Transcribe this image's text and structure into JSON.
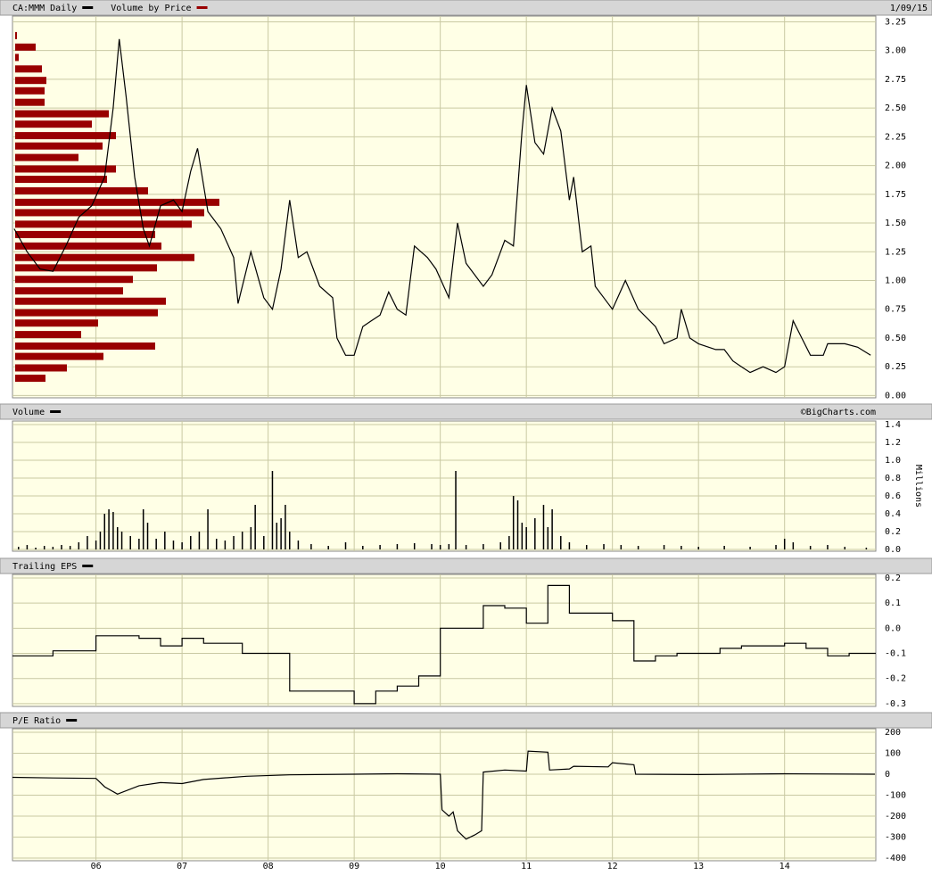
{
  "chart_data": [
    {
      "type": "line",
      "date": "1/09/15",
      "series": [
        {
          "name": "CA:MMM Daily",
          "color": "#000000",
          "x": [
            2005.05,
            2005.2,
            2005.35,
            2005.5,
            2005.65,
            2005.8,
            2005.95,
            2006.1,
            2006.2,
            2006.27,
            2006.35,
            2006.45,
            2006.55,
            2006.62,
            2006.75,
            2006.9,
            2007.0,
            2007.1,
            2007.18,
            2007.3,
            2007.45,
            2007.6,
            2007.65,
            2007.8,
            2007.95,
            2008.05,
            2008.15,
            2008.25,
            2008.35,
            2008.45,
            2008.6,
            2008.75,
            2008.8,
            2008.9,
            2009.0,
            2009.1,
            2009.2,
            2009.3,
            2009.4,
            2009.5,
            2009.6,
            2009.7,
            2009.85,
            2009.95,
            2010.1,
            2010.2,
            2010.3,
            2010.5,
            2010.6,
            2010.75,
            2010.85,
            2010.95,
            2011.0,
            2011.1,
            2011.2,
            2011.3,
            2011.4,
            2011.5,
            2011.55,
            2011.65,
            2011.75,
            2011.8,
            2011.9,
            2012.0,
            2012.15,
            2012.3,
            2012.5,
            2012.6,
            2012.75,
            2012.8,
            2012.9,
            2013.0,
            2013.2,
            2013.3,
            2013.4,
            2013.5,
            2013.6,
            2013.75,
            2013.9,
            2014.0,
            2014.1,
            2014.2,
            2014.3,
            2014.45,
            2014.5,
            2014.7,
            2014.85,
            2015.0
          ],
          "values": [
            1.45,
            1.25,
            1.1,
            1.08,
            1.3,
            1.55,
            1.65,
            1.9,
            2.5,
            3.1,
            2.6,
            1.9,
            1.45,
            1.3,
            1.65,
            1.7,
            1.6,
            1.95,
            2.15,
            1.6,
            1.45,
            1.2,
            0.8,
            1.25,
            0.85,
            0.75,
            1.1,
            1.7,
            1.2,
            1.25,
            0.95,
            0.85,
            0.5,
            0.35,
            0.35,
            0.6,
            0.65,
            0.7,
            0.9,
            0.75,
            0.7,
            1.3,
            1.2,
            1.1,
            0.85,
            1.5,
            1.15,
            0.95,
            1.05,
            1.35,
            1.3,
            2.3,
            2.7,
            2.2,
            2.1,
            2.5,
            2.3,
            1.7,
            1.9,
            1.25,
            1.3,
            0.95,
            0.85,
            0.75,
            1.0,
            0.75,
            0.6,
            0.45,
            0.5,
            0.75,
            0.5,
            0.45,
            0.4,
            0.4,
            0.3,
            0.25,
            0.2,
            0.25,
            0.2,
            0.25,
            0.65,
            0.5,
            0.35,
            0.35,
            0.45,
            0.45,
            0.42,
            0.35
          ]
        }
      ],
      "volume_by_price": {
        "name": "Volume by Price",
        "color": "#990000",
        "prices": [
          3.13,
          3.03,
          2.94,
          2.84,
          2.74,
          2.65,
          2.55,
          2.45,
          2.36,
          2.26,
          2.17,
          2.07,
          1.97,
          1.88,
          1.78,
          1.68,
          1.59,
          1.49,
          1.4,
          1.3,
          1.2,
          1.11,
          1.01,
          0.91,
          0.82,
          0.72,
          0.63,
          0.53,
          0.43,
          0.34,
          0.24,
          0.15
        ],
        "values": [
          2,
          23,
          4,
          30,
          35,
          33,
          33,
          105,
          86,
          113,
          98,
          71,
          113,
          103,
          149,
          229,
          212,
          198,
          157,
          164,
          201,
          159,
          132,
          121,
          169,
          160,
          93,
          74,
          157,
          99,
          58,
          34
        ]
      },
      "xlim": [
        2005.03,
        2015.06
      ],
      "ylim": [
        -0.02,
        3.3
      ],
      "yticks": [
        {
          "value": 0,
          "label": "0.00"
        },
        0.25,
        {
          "value": 0.5,
          "label": "0.50"
        },
        0.75,
        {
          "value": 1,
          "label": "1.00"
        },
        1.25,
        {
          "value": 1.5,
          "label": "1.50"
        },
        1.75,
        {
          "value": 2,
          "label": "2.00"
        },
        2.25,
        {
          "value": 2.5,
          "label": "2.50"
        },
        2.75,
        {
          "value": 3,
          "label": "3.00"
        },
        3.25
      ],
      "grid": true
    },
    {
      "type": "bar",
      "credit": "©BigCharts.com",
      "y_label": "Millions",
      "series": [
        {
          "name": "Volume",
          "color": "#000000",
          "x": [
            2005.1,
            2005.2,
            2005.3,
            2005.4,
            2005.5,
            2005.6,
            2005.7,
            2005.8,
            2005.9,
            2006.0,
            2006.05,
            2006.1,
            2006.15,
            2006.2,
            2006.25,
            2006.3,
            2006.4,
            2006.5,
            2006.55,
            2006.6,
            2006.7,
            2006.8,
            2006.9,
            2007.0,
            2007.1,
            2007.2,
            2007.3,
            2007.4,
            2007.5,
            2007.6,
            2007.7,
            2007.8,
            2007.85,
            2007.95,
            2008.05,
            2008.1,
            2008.15,
            2008.2,
            2008.25,
            2008.35,
            2008.5,
            2008.7,
            2008.9,
            2009.1,
            2009.3,
            2009.5,
            2009.7,
            2009.9,
            2010.0,
            2010.1,
            2010.18,
            2010.3,
            2010.5,
            2010.7,
            2010.8,
            2010.85,
            2010.9,
            2010.95,
            2011.0,
            2011.1,
            2011.2,
            2011.25,
            2011.3,
            2011.4,
            2011.5,
            2011.7,
            2011.9,
            2012.1,
            2012.3,
            2012.6,
            2012.8,
            2013.0,
            2013.3,
            2013.6,
            2013.9,
            2014.0,
            2014.1,
            2014.3,
            2014.5,
            2014.7,
            2014.95
          ],
          "values": [
            0.03,
            0.05,
            0.02,
            0.04,
            0.03,
            0.05,
            0.04,
            0.08,
            0.15,
            0.1,
            0.2,
            0.4,
            0.45,
            0.42,
            0.25,
            0.2,
            0.15,
            0.12,
            0.45,
            0.3,
            0.12,
            0.2,
            0.1,
            0.08,
            0.15,
            0.2,
            0.45,
            0.12,
            0.1,
            0.15,
            0.2,
            0.25,
            0.5,
            0.15,
            0.88,
            0.3,
            0.35,
            0.5,
            0.2,
            0.1,
            0.06,
            0.04,
            0.08,
            0.04,
            0.05,
            0.06,
            0.07,
            0.06,
            0.05,
            0.06,
            0.88,
            0.05,
            0.06,
            0.08,
            0.15,
            0.6,
            0.55,
            0.3,
            0.25,
            0.35,
            0.5,
            0.25,
            0.45,
            0.15,
            0.08,
            0.05,
            0.06,
            0.05,
            0.04,
            0.05,
            0.04,
            0.03,
            0.04,
            0.03,
            0.05,
            0.12,
            0.08,
            0.04,
            0.05,
            0.03,
            0.02
          ]
        }
      ],
      "xlim": [
        2005.03,
        2015.06
      ],
      "ylim": [
        -0.02,
        1.44
      ],
      "yticks": [
        {
          "value": 0,
          "label": "0.0"
        },
        0.2,
        0.4,
        0.6,
        0.8,
        {
          "value": 1,
          "label": "1.0"
        },
        1.2,
        1.4
      ],
      "grid": true
    },
    {
      "type": "step",
      "series": [
        {
          "name": "Trailing EPS",
          "color": "#000000",
          "x": [
            2005.03,
            2005.5,
            2006.0,
            2006.5,
            2006.75,
            2007.0,
            2007.25,
            2007.7,
            2008.25,
            2009.0,
            2009.25,
            2009.5,
            2009.75,
            2010.0,
            2010.5,
            2010.75,
            2011.0,
            2011.25,
            2011.5,
            2012.0,
            2012.25,
            2012.5,
            2012.75,
            2013.25,
            2013.5,
            2014.0,
            2014.25,
            2014.5,
            2014.75
          ],
          "values": [
            -0.11,
            -0.09,
            -0.03,
            -0.04,
            -0.07,
            -0.04,
            -0.06,
            -0.1,
            -0.25,
            -0.3,
            -0.25,
            -0.23,
            -0.19,
            0.0,
            0.09,
            0.08,
            0.02,
            0.17,
            0.06,
            0.03,
            -0.13,
            -0.11,
            -0.1,
            -0.08,
            -0.07,
            -0.06,
            -0.08,
            -0.11,
            -0.1
          ]
        }
      ],
      "xlim": [
        2005.03,
        2015.06
      ],
      "ylim": [
        -0.311,
        0.214
      ],
      "yticks": [
        0.2,
        0.1,
        {
          "value": 0,
          "label": "0.0"
        },
        -0.1,
        -0.2,
        -0.3
      ],
      "grid": true
    },
    {
      "type": "line",
      "series": [
        {
          "name": "P/E Ratio",
          "color": "#000000",
          "x": [
            2005.03,
            2005.5,
            2006.0,
            2006.1,
            2006.25,
            2006.5,
            2006.75,
            2007.0,
            2007.25,
            2007.75,
            2008.25,
            2009.0,
            2009.5,
            2010.0,
            2010.02,
            2010.1,
            2010.15,
            2010.2,
            2010.3,
            2010.4,
            2010.48,
            2010.5,
            2010.75,
            2011.0,
            2011.02,
            2011.25,
            2011.27,
            2011.5,
            2011.55,
            2011.95,
            2012.0,
            2012.25,
            2012.27,
            2013.0,
            2014.0,
            2015.05
          ],
          "values": [
            -15,
            -18,
            -20,
            -60,
            -95,
            -55,
            -40,
            -45,
            -25,
            -10,
            -3,
            0,
            2,
            0,
            -170,
            -200,
            -180,
            -270,
            -310,
            -290,
            -270,
            10,
            20,
            15,
            110,
            105,
            20,
            25,
            38,
            35,
            55,
            45,
            0,
            -2,
            2,
            0
          ]
        }
      ],
      "xlim": [
        2005.03,
        2015.06
      ],
      "ylim": [
        -413,
        217
      ],
      "yticks": [
        200,
        100,
        0,
        -100,
        -200,
        -300,
        -400
      ],
      "xticks": [
        {
          "value": 2006,
          "label": "06"
        },
        {
          "value": 2007,
          "label": "07"
        },
        {
          "value": 2008,
          "label": "08"
        },
        {
          "value": 2009,
          "label": "09"
        },
        {
          "value": 2010,
          "label": "10"
        },
        {
          "value": 2011,
          "label": "11"
        },
        {
          "value": 2012,
          "label": "12"
        },
        {
          "value": 2013,
          "label": "13"
        },
        {
          "value": 2014,
          "label": "14"
        }
      ],
      "grid": true
    }
  ]
}
